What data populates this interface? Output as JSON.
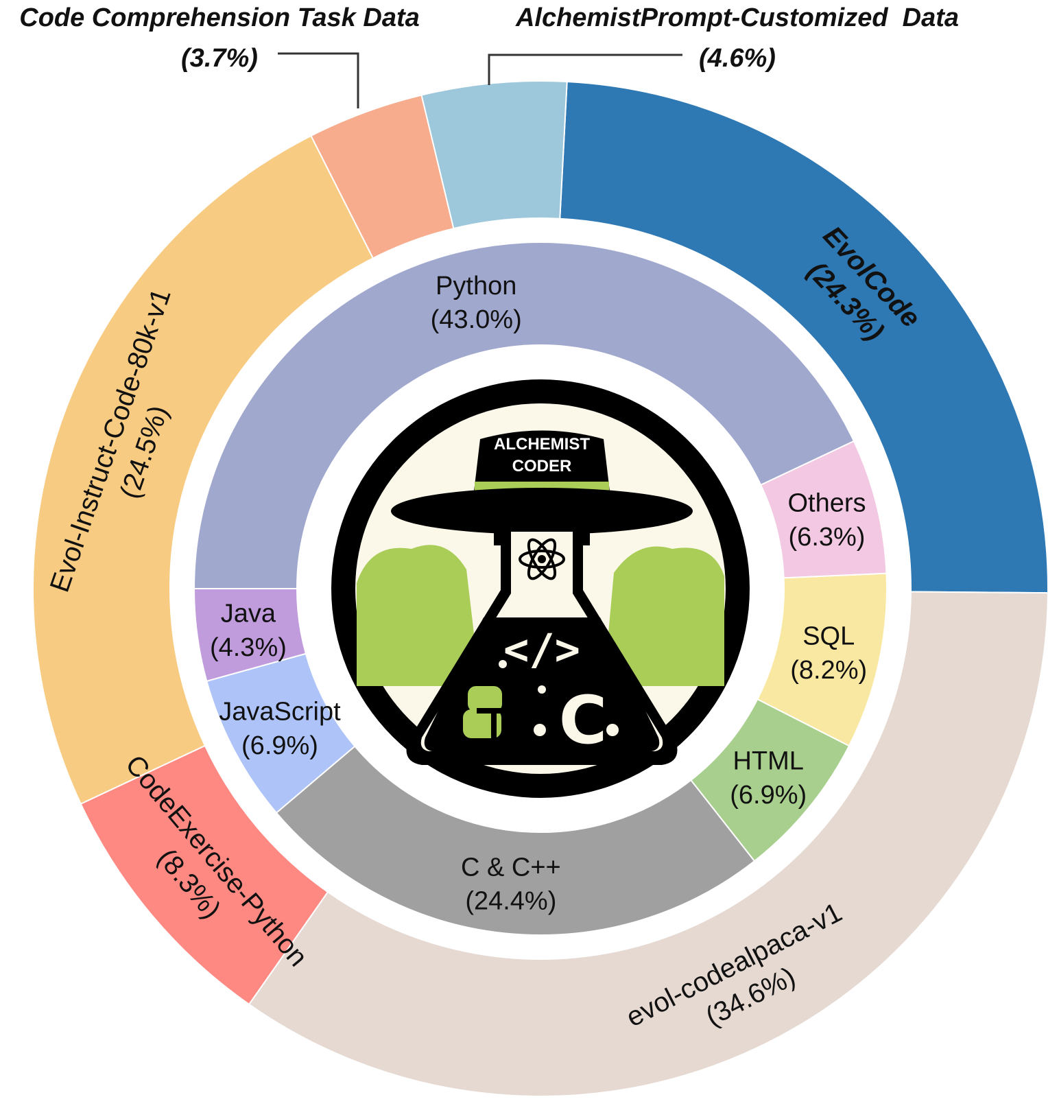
{
  "chart_data": {
    "type": "pie",
    "subtype": "nested-donut",
    "outer_ring": {
      "slices": [
        {
          "label": "EvolCode",
          "value": 24.3,
          "value_text": "(24.3%)",
          "color": "#2e78b4",
          "bold": true
        },
        {
          "label": "evol-codealpaca-v1",
          "value": 34.6,
          "value_text": "(34.6%)",
          "color": "#e5d9d1"
        },
        {
          "label": "CodeExercise-Python",
          "value": 8.3,
          "value_text": "(8.3%)",
          "color": "#fe8983"
        },
        {
          "label": "Evol-Instruct-Code-80k-v1",
          "value": 24.5,
          "value_text": "(24.5%)",
          "color": "#f7cb82"
        },
        {
          "label": "Code Comprehension Task Data",
          "value": 3.7,
          "value_text": "(3.7%)",
          "color": "#f6ac8d",
          "callout": true
        },
        {
          "label": "AlchemistPrompt-Customized  Data",
          "value": 4.6,
          "value_text": "(4.6%)",
          "color": "#9dc7da",
          "callout": true
        }
      ]
    },
    "inner_ring": {
      "slices": [
        {
          "label": "Python",
          "value": 43.0,
          "value_text": "(43.0%)",
          "color": "#a1a8ce"
        },
        {
          "label": "Others",
          "value": 6.3,
          "value_text": "(6.3%)",
          "color": "#f2c8e2"
        },
        {
          "label": "SQL",
          "value": 8.2,
          "value_text": "(8.2%)",
          "color": "#f9e8a2"
        },
        {
          "label": "HTML",
          "value": 6.9,
          "value_text": "(6.9%)",
          "color": "#a8cf8d"
        },
        {
          "label": "C & C++",
          "value": 24.4,
          "value_text": "(24.4%)",
          "color": "#a0a0a0"
        },
        {
          "label": "JavaScript",
          "value": 6.9,
          "value_text": "(6.9%)",
          "color": "#aec4f8"
        },
        {
          "label": "Java",
          "value": 4.3,
          "value_text": "(4.3%)",
          "color": "#c09cdd"
        }
      ]
    }
  },
  "logo": {
    "text_line1": "ALCHEMIST",
    "text_line2": "CODER",
    "code_glyph": "</>",
    "c_glyph": "C",
    "icon_names": [
      "hat-icon",
      "flask-icon",
      "atom-icon",
      "python-logo-icon",
      "c-language-icon"
    ],
    "colors": {
      "ring": "#000000",
      "background": "#fbf8ea",
      "green": "#a9cd57"
    }
  }
}
